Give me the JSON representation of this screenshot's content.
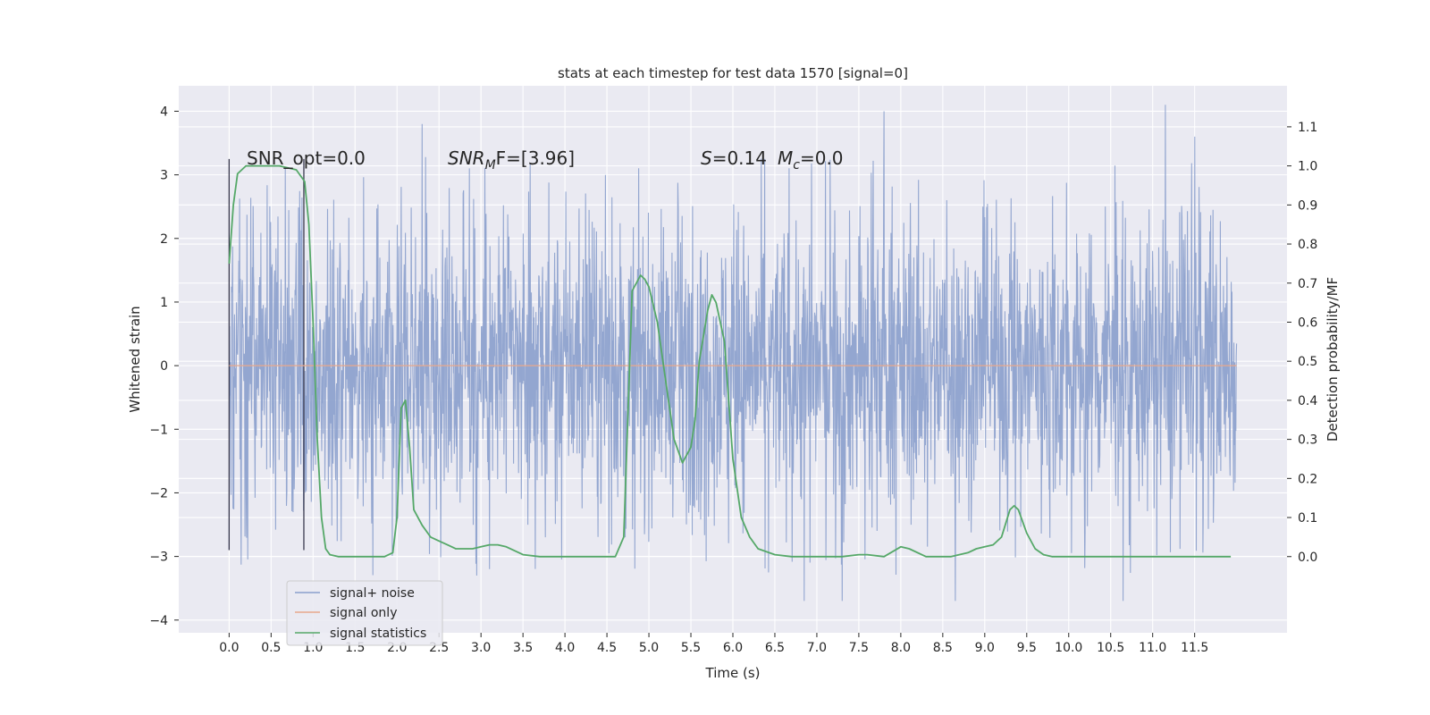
{
  "chart_data": {
    "type": "line",
    "title": "stats at each timestep for test data 1570 [signal=0]",
    "xlabel": "Time (s)",
    "ylabel": "Whitened strain",
    "y2label": "Detection probability/MF",
    "xlim": [
      -0.6,
      12.6
    ],
    "ylim": [
      -4.2,
      4.4
    ],
    "y2lim": [
      -0.195,
      1.205
    ],
    "x_ticks": [
      "0.0",
      "0.5",
      "1.0",
      "1.5",
      "2.0",
      "2.5",
      "3.0",
      "3.5",
      "4.0",
      "4.5",
      "5.0",
      "5.5",
      "6.0",
      "6.5",
      "7.0",
      "7.5",
      "8.0",
      "8.5",
      "9.0",
      "9.5",
      "10.0",
      "10.5",
      "11.0",
      "11.5"
    ],
    "y_ticks": [
      "4",
      "3",
      "2",
      "1",
      "0",
      "−1",
      "−2",
      "−3",
      "−4"
    ],
    "y2_ticks": [
      "1.1",
      "1.0",
      "0.9",
      "0.8",
      "0.7",
      "0.6",
      "0.5",
      "0.4",
      "0.3",
      "0.2",
      "0.1",
      "0.0"
    ],
    "grid": true,
    "legend_placement": "lower-left",
    "annotations": {
      "snr_opt": "SNR_opt=0.0",
      "snr_mf": "SNR",
      "snr_mf_sub": "M",
      "snr_mf_rest": "F=[3.96]",
      "s_label": "S",
      "s_value": "=0.14",
      "mc_label": "M",
      "mc_sub": "c",
      "mc_value": "=0.0"
    },
    "markers": {
      "vlines_x": [
        0.0,
        0.89
      ]
    },
    "series": [
      {
        "name": "signal+ noise",
        "color": "#8a9fcc",
        "kind": "noise",
        "x_range": [
          0.0,
          12.0
        ],
        "typical_envelope": [
          -2.0,
          2.0
        ],
        "extremes": [
          {
            "x": 0.0,
            "y": -2.9
          },
          {
            "x": 2.3,
            "y": 3.8
          },
          {
            "x": 2.95,
            "y": -3.3
          },
          {
            "x": 3.1,
            "y": -3.2
          },
          {
            "x": 6.85,
            "y": -3.7
          },
          {
            "x": 7.3,
            "y": -3.7
          },
          {
            "x": 7.8,
            "y": 4.0
          },
          {
            "x": 8.65,
            "y": -3.7
          },
          {
            "x": 10.65,
            "y": -3.7
          },
          {
            "x": 11.15,
            "y": 4.1
          },
          {
            "x": 11.5,
            "y": 3.6
          }
        ]
      },
      {
        "name": "signal only",
        "color": "#e8a88b",
        "x": [
          0.0,
          12.0
        ],
        "y": [
          0.0,
          0.0
        ]
      },
      {
        "name": "signal statistics",
        "color": "#55a868",
        "axis": "right",
        "x": [
          0.0,
          0.05,
          0.1,
          0.2,
          0.4,
          0.6,
          0.8,
          0.9,
          0.95,
          1.0,
          1.05,
          1.1,
          1.15,
          1.2,
          1.3,
          1.5,
          1.7,
          1.85,
          1.95,
          2.0,
          2.05,
          2.1,
          2.15,
          2.2,
          2.3,
          2.4,
          2.5,
          2.6,
          2.7,
          2.8,
          2.9,
          3.0,
          3.1,
          3.2,
          3.3,
          3.4,
          3.5,
          3.7,
          4.0,
          4.3,
          4.5,
          4.6,
          4.7,
          4.8,
          4.9,
          4.95,
          5.0,
          5.1,
          5.2,
          5.3,
          5.4,
          5.5,
          5.55,
          5.6,
          5.7,
          5.75,
          5.8,
          5.9,
          6.0,
          6.1,
          6.2,
          6.3,
          6.5,
          6.7,
          7.0,
          7.3,
          7.5,
          7.6,
          7.8,
          8.0,
          8.1,
          8.3,
          8.6,
          8.8,
          8.9,
          9.0,
          9.1,
          9.2,
          9.3,
          9.35,
          9.4,
          9.5,
          9.6,
          9.7,
          9.8,
          10.0,
          10.5,
          11.0,
          11.5,
          11.93
        ],
        "y": [
          0.75,
          0.9,
          0.98,
          1.0,
          1.0,
          1.0,
          0.99,
          0.96,
          0.85,
          0.6,
          0.3,
          0.1,
          0.02,
          0.005,
          0.0,
          0.0,
          0.0,
          0.0,
          0.01,
          0.1,
          0.38,
          0.4,
          0.28,
          0.12,
          0.08,
          0.05,
          0.04,
          0.03,
          0.02,
          0.02,
          0.02,
          0.025,
          0.03,
          0.03,
          0.025,
          0.015,
          0.005,
          0.0,
          0.0,
          0.0,
          0.0,
          0.0,
          0.05,
          0.68,
          0.72,
          0.71,
          0.69,
          0.6,
          0.45,
          0.3,
          0.24,
          0.28,
          0.35,
          0.5,
          0.63,
          0.67,
          0.65,
          0.55,
          0.25,
          0.1,
          0.05,
          0.02,
          0.005,
          0.0,
          0.0,
          0.0,
          0.005,
          0.005,
          0.0,
          0.025,
          0.02,
          0.0,
          0.0,
          0.01,
          0.02,
          0.025,
          0.03,
          0.05,
          0.12,
          0.13,
          0.12,
          0.06,
          0.02,
          0.005,
          0.0,
          0.0,
          0.0,
          0.0,
          0.0,
          0.0
        ]
      }
    ]
  }
}
